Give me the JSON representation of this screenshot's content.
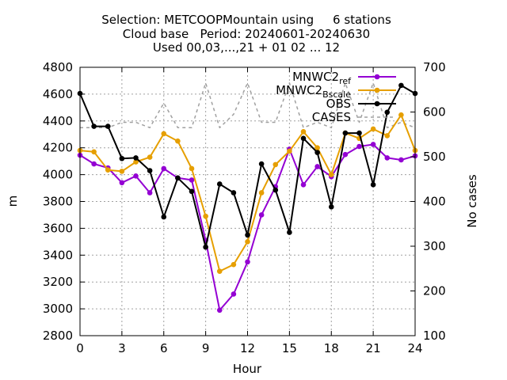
{
  "chart_data": {
    "type": "line",
    "title_lines": [
      "Selection: METCOOPMountain using     6 stations",
      "Cloud base   Period: 20240601-20240630",
      "Used 00,03,...,21 + 01 02 ... 12"
    ],
    "xlabel": "Hour",
    "ylabel": "m",
    "y2label": "No cases",
    "xlim": [
      0,
      24
    ],
    "ylim": [
      2800,
      4800
    ],
    "y2lim": [
      100,
      700
    ],
    "x_ticks": [
      0,
      3,
      6,
      9,
      12,
      15,
      18,
      21,
      24
    ],
    "y_ticks": [
      2800,
      3000,
      3200,
      3400,
      3600,
      3800,
      4000,
      4200,
      4400,
      4600,
      4800
    ],
    "y2_ticks": [
      100,
      200,
      300,
      400,
      500,
      600,
      700
    ],
    "grid": true,
    "legend_position": "top-right",
    "x": [
      0,
      1,
      2,
      3,
      4,
      5,
      6,
      7,
      8,
      9,
      10,
      11,
      12,
      13,
      14,
      15,
      16,
      17,
      18,
      19,
      20,
      21,
      22,
      23,
      24
    ],
    "series": [
      {
        "name": "MNWC2_ref",
        "legend_main": "MNWC2",
        "legend_sub": "ref",
        "axis": "y",
        "color": "#9400d3",
        "style": "solid",
        "marker": "circle",
        "values": [
          4145,
          4080,
          4050,
          3940,
          3990,
          3865,
          4045,
          3975,
          3960,
          3510,
          2990,
          3110,
          3350,
          3700,
          3910,
          4190,
          3925,
          4060,
          3985,
          4150,
          4210,
          4225,
          4125,
          4110,
          4140
        ]
      },
      {
        "name": "MNWC2_Bscale",
        "legend_main": "MNWC2",
        "legend_sub": "Bscale",
        "axis": "y",
        "color": "#e69f00",
        "style": "solid",
        "marker": "circle",
        "values": [
          4180,
          4170,
          4035,
          4025,
          4095,
          4130,
          4305,
          4250,
          4045,
          3690,
          3280,
          3330,
          3500,
          3865,
          4075,
          4175,
          4320,
          4200,
          4000,
          4310,
          4270,
          4340,
          4290,
          4445,
          4180
        ]
      },
      {
        "name": "OBS",
        "legend_main": "OBS",
        "legend_sub": "",
        "axis": "y",
        "color": "#000000",
        "style": "solid",
        "marker": "circle",
        "values": [
          4605,
          4360,
          4360,
          4120,
          4125,
          4030,
          3685,
          3975,
          3875,
          3460,
          3930,
          3865,
          3550,
          4080,
          3885,
          3570,
          4270,
          4165,
          3760,
          4310,
          4310,
          3925,
          4465,
          4665,
          4605
        ]
      },
      {
        "name": "CASES",
        "legend_main": "CASES",
        "legend_sub": "",
        "axis": "y2",
        "color": "#a0a0a0",
        "style": "dashed",
        "marker": "none",
        "values": [
          565,
          565,
          565,
          577,
          577,
          565,
          620,
          565,
          565,
          665,
          565,
          595,
          665,
          577,
          577,
          665,
          565,
          577,
          565,
          665,
          577,
          665,
          565,
          577,
          565
        ]
      }
    ]
  }
}
